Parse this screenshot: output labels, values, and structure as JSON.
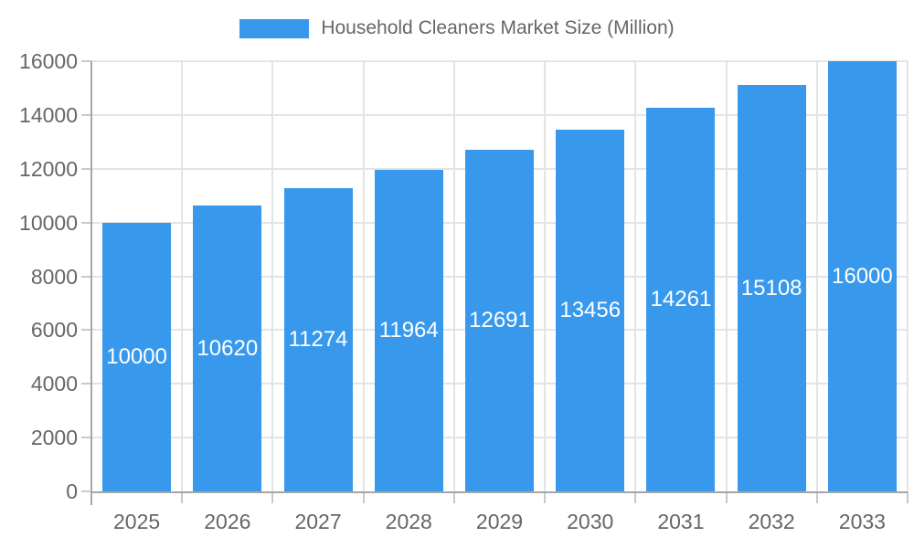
{
  "chart_data": {
    "type": "bar",
    "title": "Household Cleaners Market Size (Million)",
    "legend": {
      "label": "Household Cleaners Market Size (Million)",
      "position": "top"
    },
    "categories": [
      "2025",
      "2026",
      "2027",
      "2028",
      "2029",
      "2030",
      "2031",
      "2032",
      "2033"
    ],
    "values": [
      10000,
      10620,
      11274,
      11964,
      12691,
      13456,
      14261,
      15108,
      16000
    ],
    "series": [
      {
        "name": "Household Cleaners Market Size (Million)",
        "values": [
          10000,
          10620,
          11274,
          11964,
          12691,
          13456,
          14261,
          15108,
          16000
        ]
      }
    ],
    "bar_value_labels_visible": true,
    "xlabel": "",
    "ylabel": "",
    "ylim": [
      0,
      16000
    ],
    "yticks": [
      0,
      2000,
      4000,
      6000,
      8000,
      10000,
      12000,
      14000,
      16000
    ],
    "grid": true,
    "colors": {
      "bar": "#3899EC",
      "bar_label_text": "#FFFFFF",
      "axis_text": "#666666",
      "axis_line": "#A6A6A6",
      "gridline": "#E4E4E4",
      "tick": "#C9C9C9",
      "background": "#FFFFFF"
    }
  }
}
